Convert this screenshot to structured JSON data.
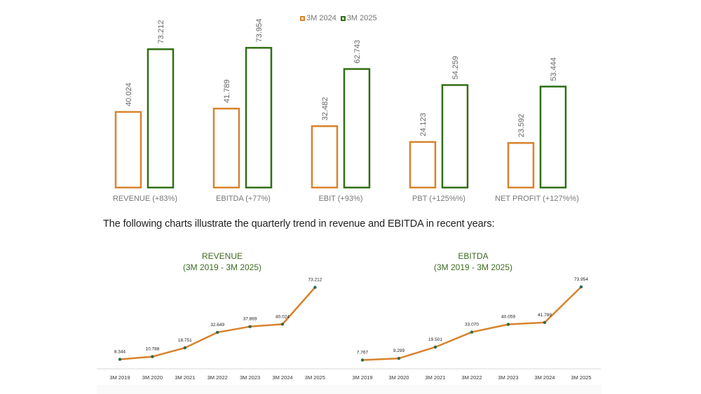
{
  "legend": [
    {
      "label": "3M 2024",
      "color": "#d9822b"
    },
    {
      "label": "3M 2025",
      "color": "#2f6f12"
    }
  ],
  "caption": "The following charts illustrate the quarterly trend in revenue and EBITDA in recent years:",
  "chart_data": [
    {
      "type": "bar",
      "categories": [
        "REVENUE (+83%)",
        "EBITDA (+77%)",
        "EBIT (+93%)",
        "PBT (+125%%)",
        "NET PROFIT (+127%%)"
      ],
      "series": [
        {
          "name": "3M 2024",
          "values": [
            40.024,
            41.789,
            32.482,
            24.123,
            23.592
          ],
          "labels": [
            "40.024",
            "41.789",
            "32.482",
            "24.123",
            "23.592"
          ],
          "color": "#d9822b"
        },
        {
          "name": "3M 2025",
          "values": [
            73.212,
            73.954,
            62.743,
            54.259,
            53.444
          ],
          "labels": [
            "73.212",
            "73.954",
            "62.743",
            "54.259",
            "53.444"
          ],
          "color": "#2f6f12"
        }
      ],
      "ylim": [
        0,
        80
      ],
      "legend_position": "top-center"
    },
    {
      "type": "line",
      "title": "REVENUE",
      "subtitle": "(3M 2019 - 3M 2025)",
      "x": [
        "3M 2019",
        "3M 2020",
        "3M 2021",
        "3M 2022",
        "3M 2023",
        "3M 2024",
        "3M 2025"
      ],
      "values": [
        8.344,
        10.788,
        18.751,
        32.649,
        37.869,
        40.024,
        73.212
      ],
      "labels": [
        "8.344",
        "10.788",
        "18.751",
        "32.649",
        "37.869",
        "40.024",
        "73.212"
      ],
      "line_color": "#d9822b",
      "marker_color": "#2e6b4a"
    },
    {
      "type": "line",
      "title": "EBITDA",
      "subtitle": "(3M 2019 - 3M 2025)",
      "x": [
        "3M 2019",
        "3M 2020",
        "3M 2021",
        "3M 2022",
        "3M 2023",
        "3M 2024",
        "3M 2025"
      ],
      "values": [
        7.767,
        9.299,
        19.501,
        33.07,
        40.059,
        41.789,
        73.954
      ],
      "labels": [
        "7.767",
        "9.299",
        "19.501",
        "33.070",
        "40.059",
        "41.789",
        "73.954"
      ],
      "line_color": "#d9822b",
      "marker_color": "#2e6b4a"
    }
  ]
}
